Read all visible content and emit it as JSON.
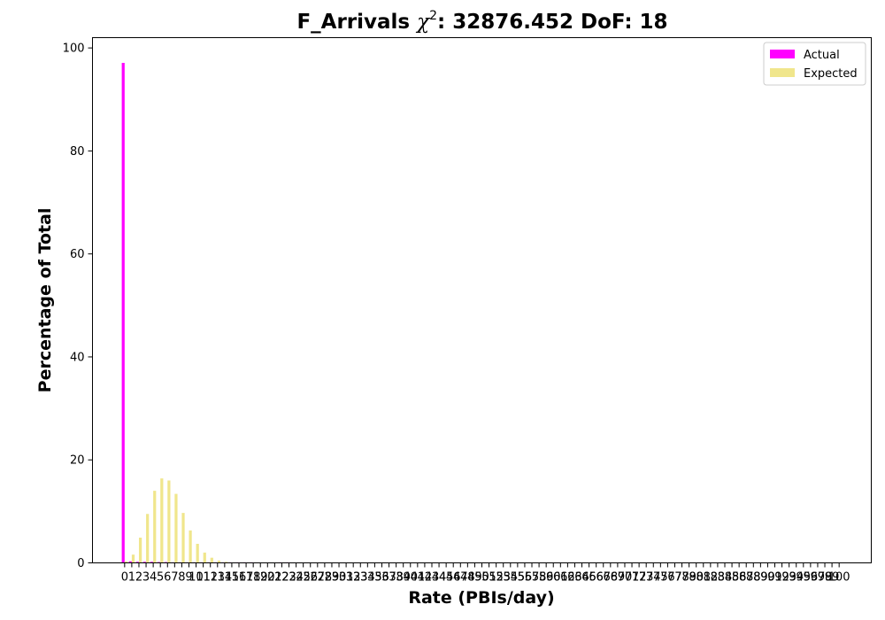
{
  "chart_data": {
    "type": "bar",
    "title": "F_Arrivals χ²: 32876.452 DoF: 18",
    "title_parts": {
      "prefix": "F_Arrivals ",
      "chi": "χ",
      "sup": "2",
      "suffix": ": 32876.452 DoF: 18"
    },
    "xlabel": "Rate (PBIs/day)",
    "ylabel": "Percentage of Total",
    "ylim": [
      0,
      102
    ],
    "yticks": [
      0,
      20,
      40,
      60,
      80,
      100
    ],
    "xlim": [
      -4.5,
      104.5
    ],
    "x": [
      0,
      1,
      2,
      3,
      4,
      5,
      6,
      7,
      8,
      9,
      10,
      11,
      12,
      13,
      14,
      15,
      16,
      17,
      18,
      19,
      20,
      21,
      22,
      23,
      24,
      25,
      26,
      27,
      28,
      29,
      30,
      31,
      32,
      33,
      34,
      35,
      36,
      37,
      38,
      39,
      40,
      41,
      42,
      43,
      44,
      45,
      46,
      47,
      48,
      49,
      50,
      51,
      52,
      53,
      54,
      55,
      56,
      57,
      58,
      59,
      60,
      61,
      62,
      63,
      64,
      65,
      66,
      67,
      68,
      69,
      70,
      71,
      72,
      73,
      74,
      75,
      76,
      77,
      78,
      79,
      80,
      81,
      82,
      83,
      84,
      85,
      86,
      87,
      88,
      89,
      90,
      91,
      92,
      93,
      94,
      95,
      96,
      97,
      98,
      99,
      100
    ],
    "series": [
      {
        "name": "Actual",
        "color": "#ff00ff",
        "values": [
          97.1,
          0.3,
          0.2,
          0.2,
          0.2,
          0.15,
          0.15,
          0.1,
          0.1,
          0.1,
          0.1,
          0.1,
          0.1,
          0.1,
          0.1,
          0.1,
          0.1,
          0.1,
          0.1,
          0,
          0,
          0,
          0.1,
          0.1,
          0,
          0,
          0,
          0,
          0,
          0,
          0,
          0,
          0,
          0,
          0,
          0,
          0,
          0,
          0,
          0,
          0,
          0,
          0,
          0,
          0,
          0,
          0,
          0,
          0,
          0,
          0,
          0,
          0,
          0,
          0,
          0,
          0,
          0,
          0,
          0,
          0,
          0,
          0,
          0,
          0,
          0,
          0,
          0,
          0,
          0,
          0,
          0,
          0,
          0,
          0,
          0,
          0,
          0,
          0,
          0,
          0,
          0,
          0,
          0,
          0,
          0,
          0,
          0,
          0,
          0,
          0,
          0,
          0,
          0,
          0,
          0,
          0,
          0,
          0,
          0,
          0
        ]
      },
      {
        "name": "Expected",
        "color": "#f0e68c",
        "values": [
          0.3,
          1.6,
          4.9,
          9.5,
          14.0,
          16.4,
          16.0,
          13.4,
          9.7,
          6.3,
          3.7,
          2.0,
          1.0,
          0.45,
          0.2,
          0.08,
          0.03,
          0.01,
          0,
          0,
          0,
          0,
          0,
          0,
          0,
          0,
          0,
          0,
          0,
          0,
          0,
          0,
          0,
          0,
          0,
          0,
          0,
          0,
          0,
          0,
          0,
          0,
          0,
          0,
          0,
          0,
          0,
          0,
          0,
          0,
          0,
          0,
          0,
          0,
          0,
          0,
          0,
          0,
          0,
          0,
          0,
          0,
          0,
          0,
          0,
          0,
          0,
          0,
          0,
          0,
          0,
          0,
          0,
          0,
          0,
          0,
          0,
          0,
          0,
          0,
          0,
          0,
          0,
          0,
          0,
          0,
          0,
          0,
          0,
          0,
          0,
          0,
          0,
          0,
          0,
          0,
          0,
          0,
          0,
          0,
          0
        ]
      }
    ],
    "legend": {
      "location": "top-right",
      "entries": [
        "Actual",
        "Expected"
      ]
    }
  }
}
